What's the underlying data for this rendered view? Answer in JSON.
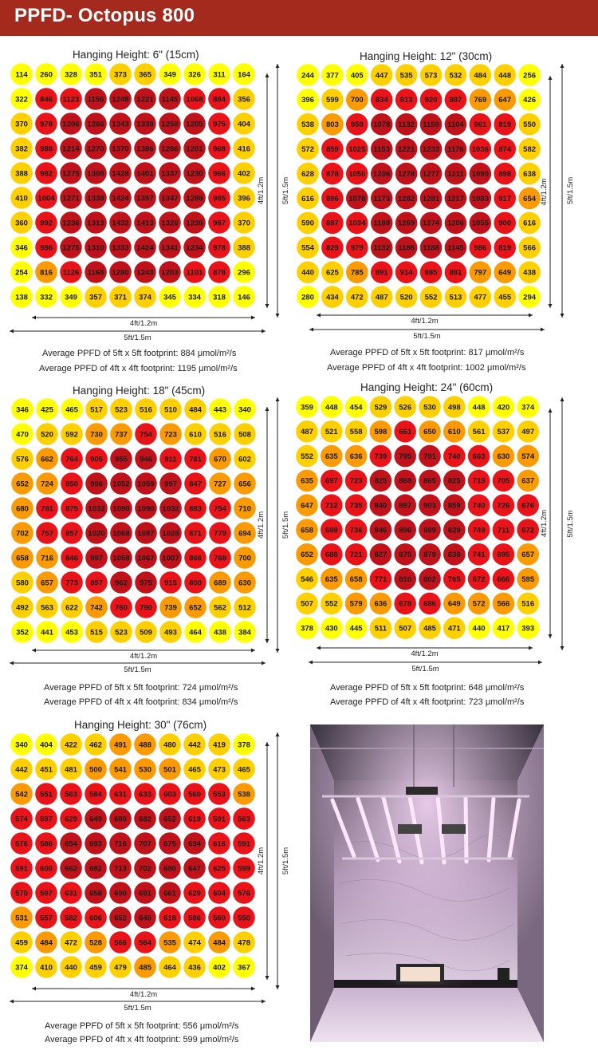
{
  "header": {
    "title": "PPFD- Octopus 800"
  },
  "colors": {
    "header": "#a52a1e",
    "heat_scale": [
      "#ffff00",
      "#ffd000",
      "#fa9a05",
      "#e8141a",
      "#c0121a"
    ]
  },
  "photo": {
    "description_icon": "grow-tent-photo"
  },
  "chart_data": [
    {
      "type": "heatmap",
      "title": "Hanging Height: 6\" (15cm)",
      "x_label": "4ft/1.2m",
      "x_label_outer": "5ft/1.5m",
      "y_label": "4ft/1.2m",
      "y_label_outer": "5ft/1.5m",
      "values": [
        [
          114,
          260,
          328,
          351,
          373,
          365,
          349,
          326,
          311,
          164
        ],
        [
          322,
          846,
          1123,
          1156,
          1248,
          1221,
          1145,
          1068,
          884,
          356
        ],
        [
          370,
          978,
          1206,
          1266,
          1343,
          1338,
          1258,
          1205,
          975,
          404
        ],
        [
          382,
          988,
          1214,
          1270,
          1370,
          1386,
          1286,
          1201,
          968,
          416
        ],
        [
          388,
          982,
          1275,
          1308,
          1428,
          1401,
          1337,
          1230,
          966,
          402
        ],
        [
          410,
          1004,
          1271,
          1338,
          1424,
          1397,
          1347,
          1288,
          985,
          396
        ],
        [
          360,
          992,
          1236,
          1313,
          1432,
          1413,
          1326,
          1238,
          987,
          370
        ],
        [
          346,
          986,
          1275,
          1310,
          1333,
          1424,
          1341,
          1234,
          978,
          388
        ],
        [
          254,
          816,
          1126,
          1168,
          1280,
          1243,
          1203,
          1101,
          878,
          296
        ],
        [
          138,
          332,
          349,
          357,
          371,
          374,
          345,
          334,
          318,
          146
        ]
      ],
      "avg_5ft": "Average PPFD of 5ft x 5ft footprint: 884 μmol/m²/s",
      "avg_4ft": "Average PPFD of 4ft x 4ft footprint: 1195 μmol/m²/s"
    },
    {
      "type": "heatmap",
      "title": "Hanging Height: 12\" (30cm)",
      "x_label": "4ft/1.2m",
      "x_label_outer": "5ft/1.5m",
      "y_label": "4ft/1.2m",
      "y_label_outer": "5ft/1.5m",
      "values": [
        [
          244,
          377,
          405,
          447,
          535,
          573,
          532,
          484,
          448,
          256
        ],
        [
          396,
          599,
          700,
          834,
          913,
          920,
          887,
          769,
          647,
          426
        ],
        [
          538,
          803,
          958,
          1078,
          1132,
          1159,
          1104,
          961,
          819,
          550
        ],
        [
          572,
          859,
          1025,
          1153,
          1221,
          1233,
          1176,
          1036,
          874,
          582
        ],
        [
          628,
          878,
          1050,
          1206,
          1278,
          1277,
          1211,
          1090,
          898,
          638
        ],
        [
          616,
          896,
          1078,
          1173,
          1282,
          1281,
          1217,
          1083,
          917,
          654
        ],
        [
          590,
          887,
          1034,
          1188,
          1269,
          1274,
          1206,
          1055,
          900,
          616
        ],
        [
          554,
          829,
          979,
          1132,
          1186,
          1188,
          1145,
          986,
          819,
          566
        ],
        [
          440,
          625,
          785,
          891,
          914,
          885,
          881,
          797,
          649,
          438
        ],
        [
          280,
          434,
          472,
          487,
          520,
          552,
          513,
          477,
          455,
          294
        ]
      ],
      "avg_5ft": "Average PPFD of 5ft x 5ft footprint: 817 μmol/m²/s",
      "avg_4ft": "Average PPFD of 4ft x 4ft footprint: 1002 μmol/m²/s"
    },
    {
      "type": "heatmap",
      "title": "Hanging Height: 18\" (45cm)",
      "x_label": "4ft/1.2m",
      "x_label_outer": "5ft/1.5m",
      "y_label": "4ft/1.2m",
      "y_label_outer": "5ft/1.5m",
      "values": [
        [
          346,
          425,
          465,
          517,
          523,
          516,
          510,
          484,
          443,
          340
        ],
        [
          470,
          520,
          592,
          730,
          737,
          754,
          723,
          610,
          516,
          508
        ],
        [
          576,
          662,
          764,
          905,
          955,
          946,
          911,
          781,
          670,
          602
        ],
        [
          652,
          724,
          850,
          996,
          1052,
          1059,
          997,
          847,
          727,
          656
        ],
        [
          680,
          781,
          875,
          1032,
          1090,
          1090,
          1032,
          883,
          754,
          710
        ],
        [
          702,
          757,
          857,
          1020,
          1068,
          1087,
          1028,
          871,
          779,
          694
        ],
        [
          658,
          716,
          846,
          997,
          1058,
          1067,
          1007,
          866,
          768,
          700
        ],
        [
          580,
          657,
          773,
          897,
          962,
          975,
          915,
          800,
          689,
          630
        ],
        [
          492,
          563,
          622,
          742,
          760,
          790,
          739,
          652,
          562,
          512
        ],
        [
          352,
          441,
          453,
          515,
          523,
          509,
          493,
          464,
          438,
          384
        ]
      ],
      "avg_5ft": "Average PPFD of 5ft x 5ft footprint: 724 μmol/m²/s",
      "avg_4ft": "Average PPFD of 4ft x 4ft footprint: 834 μmol/m²/s"
    },
    {
      "type": "heatmap",
      "title": "Hanging Height: 24\" (60cm)",
      "x_label": "4ft/1.2m",
      "x_label_outer": "5ft/1.5m",
      "y_label": "4ft/1.2m",
      "y_label_outer": "5ft/1.5m",
      "values": [
        [
          359,
          448,
          454,
          529,
          526,
          530,
          498,
          448,
          420,
          374
        ],
        [
          487,
          521,
          558,
          598,
          661,
          650,
          610,
          561,
          537,
          497
        ],
        [
          552,
          635,
          636,
          739,
          795,
          791,
          740,
          663,
          630,
          574
        ],
        [
          635,
          697,
          723,
          825,
          868,
          865,
          825,
          719,
          705,
          637
        ],
        [
          647,
          712,
          735,
          840,
          897,
          903,
          859,
          740,
          726,
          676
        ],
        [
          658,
          698,
          736,
          846,
          896,
          889,
          829,
          749,
          711,
          672
        ],
        [
          652,
          688,
          721,
          827,
          875,
          879,
          838,
          741,
          695,
          657
        ],
        [
          546,
          635,
          658,
          771,
          810,
          802,
          765,
          672,
          666,
          595
        ],
        [
          507,
          552,
          579,
          636,
          678,
          686,
          649,
          572,
          566,
          516
        ],
        [
          378,
          430,
          445,
          511,
          507,
          485,
          471,
          440,
          417,
          393
        ]
      ],
      "avg_5ft": "Average PPFD of 5ft x 5ft footprint: 648 μmol/m²/s",
      "avg_4ft": "Average PPFD of 4ft x 4ft footprint: 723 μmol/m²/s"
    },
    {
      "type": "heatmap",
      "title": "Hanging Height: 30\" (76cm)",
      "x_label": "4ft/1.2m",
      "x_label_outer": "5ft/1.5m",
      "y_label": "4ft/1.2m",
      "y_label_outer": "5ft/1.5m",
      "values": [
        [
          340,
          404,
          422,
          462,
          491,
          488,
          480,
          442,
          419,
          378
        ],
        [
          442,
          451,
          481,
          500,
          541,
          530,
          501,
          465,
          473,
          465
        ],
        [
          542,
          551,
          563,
          584,
          631,
          633,
          603,
          560,
          553,
          538
        ],
        [
          574,
          597,
          629,
          649,
          680,
          682,
          652,
          619,
          591,
          563
        ],
        [
          576,
          586,
          654,
          693,
          716,
          707,
          675,
          634,
          616,
          591
        ],
        [
          591,
          600,
          662,
          682,
          713,
          702,
          680,
          647,
          625,
          599
        ],
        [
          570,
          597,
          631,
          658,
          690,
          691,
          661,
          629,
          604,
          576
        ],
        [
          531,
          557,
          582,
          606,
          652,
          645,
          618,
          586,
          560,
          550
        ],
        [
          459,
          484,
          472,
          528,
          566,
          564,
          535,
          474,
          484,
          478
        ],
        [
          374,
          410,
          440,
          459,
          479,
          485,
          464,
          436,
          402,
          367
        ]
      ],
      "avg_5ft": "Average PPFD of 5ft x 5ft footprint: 556 μmol/m²/s",
      "avg_4ft": "Average PPFD of 4ft x 4ft footprint: 599 μmol/m²/s"
    }
  ]
}
